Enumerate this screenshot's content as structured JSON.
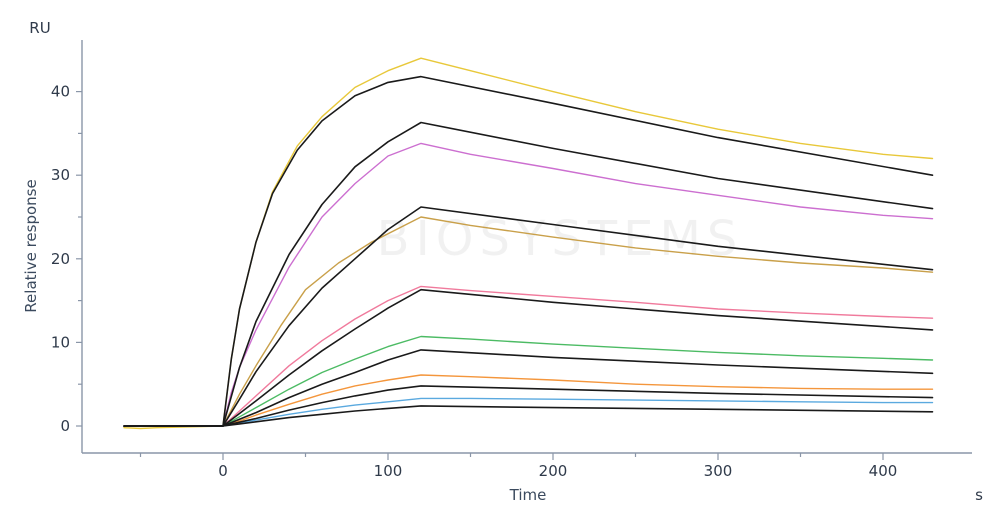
{
  "chart_data": {
    "type": "line",
    "title": "",
    "xlabel": "Time",
    "ylabel": "Relative response",
    "y_unit": "RU",
    "x_unit": "s",
    "xlim": [
      -65,
      430
    ],
    "ylim": [
      -2.5,
      46
    ],
    "x_ticks": [
      0,
      100,
      200,
      300,
      400
    ],
    "y_ticks": [
      0,
      10,
      20,
      30,
      40
    ],
    "x_minor_ticks": [
      -50,
      50,
      150,
      250,
      350
    ],
    "y_minor_ticks": [
      5,
      15,
      25,
      35
    ],
    "grid": false,
    "legend": "none",
    "series": [
      {
        "color": "#e8c83a",
        "fit": false,
        "points": [
          [
            -60,
            -0.2
          ],
          [
            -50,
            -0.3
          ],
          [
            -40,
            -0.2
          ],
          [
            0,
            0
          ],
          [
            5,
            8
          ],
          [
            10,
            14
          ],
          [
            20,
            22
          ],
          [
            30,
            28
          ],
          [
            45,
            33.5
          ],
          [
            60,
            37
          ],
          [
            80,
            40.5
          ],
          [
            100,
            42.5
          ],
          [
            120,
            44
          ],
          [
            150,
            42.5
          ],
          [
            200,
            40
          ],
          [
            250,
            37.6
          ],
          [
            300,
            35.5
          ],
          [
            350,
            33.8
          ],
          [
            400,
            32.5
          ],
          [
            430,
            32
          ]
        ]
      },
      {
        "color": "#1a1a1a",
        "fit": true,
        "points": [
          [
            -60,
            0
          ],
          [
            0,
            0
          ],
          [
            5,
            8
          ],
          [
            10,
            14
          ],
          [
            20,
            22
          ],
          [
            30,
            27.8
          ],
          [
            45,
            33
          ],
          [
            60,
            36.5
          ],
          [
            80,
            39.5
          ],
          [
            100,
            41.1
          ],
          [
            120,
            41.8
          ],
          [
            200,
            38.6
          ],
          [
            300,
            34.5
          ],
          [
            430,
            30
          ]
        ]
      },
      {
        "color": "#1a1a1a",
        "fit": true,
        "points": [
          [
            -60,
            0
          ],
          [
            0,
            0
          ],
          [
            10,
            7
          ],
          [
            20,
            12.5
          ],
          [
            40,
            20.5
          ],
          [
            60,
            26.5
          ],
          [
            80,
            31
          ],
          [
            100,
            34
          ],
          [
            120,
            36.3
          ],
          [
            200,
            33.2
          ],
          [
            300,
            29.6
          ],
          [
            430,
            26
          ]
        ]
      },
      {
        "color": "#cc6fd0",
        "fit": false,
        "points": [
          [
            -60,
            0
          ],
          [
            0,
            0
          ],
          [
            5,
            4
          ],
          [
            10,
            7
          ],
          [
            20,
            11.5
          ],
          [
            40,
            19
          ],
          [
            60,
            25
          ],
          [
            80,
            29
          ],
          [
            100,
            32.3
          ],
          [
            120,
            33.8
          ],
          [
            150,
            32.5
          ],
          [
            200,
            30.8
          ],
          [
            250,
            29
          ],
          [
            300,
            27.6
          ],
          [
            350,
            26.2
          ],
          [
            400,
            25.2
          ],
          [
            430,
            24.8
          ]
        ]
      },
      {
        "color": "#1a1a1a",
        "fit": true,
        "points": [
          [
            -60,
            0
          ],
          [
            0,
            0
          ],
          [
            10,
            3.2
          ],
          [
            20,
            6.5
          ],
          [
            40,
            12
          ],
          [
            60,
            16.5
          ],
          [
            80,
            20
          ],
          [
            100,
            23.5
          ],
          [
            120,
            26.2
          ],
          [
            200,
            24.1
          ],
          [
            300,
            21.5
          ],
          [
            430,
            18.7
          ]
        ]
      },
      {
        "color": "#c9a04a",
        "fit": false,
        "points": [
          [
            -60,
            0
          ],
          [
            0,
            0
          ],
          [
            10,
            3.8
          ],
          [
            20,
            7.2
          ],
          [
            35,
            12
          ],
          [
            50,
            16.3
          ],
          [
            70,
            19.5
          ],
          [
            90,
            22
          ],
          [
            110,
            24
          ],
          [
            120,
            25
          ],
          [
            150,
            24
          ],
          [
            200,
            22.6
          ],
          [
            250,
            21.3
          ],
          [
            300,
            20.3
          ],
          [
            350,
            19.5
          ],
          [
            400,
            18.9
          ],
          [
            430,
            18.4
          ]
        ]
      },
      {
        "color": "#f07a9c",
        "fit": false,
        "points": [
          [
            -60,
            0
          ],
          [
            0,
            0
          ],
          [
            10,
            1.8
          ],
          [
            20,
            3.6
          ],
          [
            40,
            7.2
          ],
          [
            60,
            10.2
          ],
          [
            80,
            12.8
          ],
          [
            100,
            15
          ],
          [
            120,
            16.7
          ],
          [
            150,
            16.2
          ],
          [
            200,
            15.5
          ],
          [
            250,
            14.8
          ],
          [
            300,
            14
          ],
          [
            350,
            13.5
          ],
          [
            400,
            13.1
          ],
          [
            430,
            12.9
          ]
        ]
      },
      {
        "color": "#1a1a1a",
        "fit": true,
        "points": [
          [
            -60,
            0
          ],
          [
            0,
            0
          ],
          [
            10,
            1.5
          ],
          [
            20,
            3
          ],
          [
            40,
            6.1
          ],
          [
            60,
            9
          ],
          [
            80,
            11.6
          ],
          [
            100,
            14.1
          ],
          [
            120,
            16.3
          ],
          [
            200,
            14.8
          ],
          [
            300,
            13.2
          ],
          [
            430,
            11.5
          ]
        ]
      },
      {
        "color": "#4cbb64",
        "fit": false,
        "points": [
          [
            -60,
            0
          ],
          [
            0,
            0
          ],
          [
            10,
            1.1
          ],
          [
            20,
            2.2
          ],
          [
            40,
            4.4
          ],
          [
            60,
            6.4
          ],
          [
            80,
            8
          ],
          [
            100,
            9.5
          ],
          [
            120,
            10.7
          ],
          [
            150,
            10.4
          ],
          [
            200,
            9.8
          ],
          [
            250,
            9.3
          ],
          [
            300,
            8.8
          ],
          [
            350,
            8.4
          ],
          [
            400,
            8.1
          ],
          [
            430,
            7.9
          ]
        ]
      },
      {
        "color": "#1a1a1a",
        "fit": true,
        "points": [
          [
            -60,
            0
          ],
          [
            0,
            0
          ],
          [
            10,
            0.8
          ],
          [
            20,
            1.6
          ],
          [
            40,
            3.4
          ],
          [
            60,
            5
          ],
          [
            80,
            6.4
          ],
          [
            100,
            7.9
          ],
          [
            120,
            9.1
          ],
          [
            200,
            8.2
          ],
          [
            300,
            7.3
          ],
          [
            430,
            6.3
          ]
        ]
      },
      {
        "color": "#f4963c",
        "fit": false,
        "points": [
          [
            -60,
            0
          ],
          [
            0,
            0
          ],
          [
            10,
            0.6
          ],
          [
            20,
            1.3
          ],
          [
            40,
            2.6
          ],
          [
            60,
            3.8
          ],
          [
            80,
            4.8
          ],
          [
            100,
            5.5
          ],
          [
            120,
            6.1
          ],
          [
            150,
            5.9
          ],
          [
            200,
            5.5
          ],
          [
            250,
            5
          ],
          [
            300,
            4.7
          ],
          [
            350,
            4.5
          ],
          [
            400,
            4.4
          ],
          [
            430,
            4.4
          ]
        ]
      },
      {
        "color": "#1a1a1a",
        "fit": true,
        "points": [
          [
            -60,
            0
          ],
          [
            0,
            0
          ],
          [
            10,
            0.45
          ],
          [
            20,
            0.9
          ],
          [
            40,
            1.9
          ],
          [
            60,
            2.8
          ],
          [
            80,
            3.6
          ],
          [
            100,
            4.3
          ],
          [
            120,
            4.8
          ],
          [
            200,
            4.4
          ],
          [
            300,
            3.9
          ],
          [
            430,
            3.4
          ]
        ]
      },
      {
        "color": "#5aa9df",
        "fit": false,
        "points": [
          [
            -60,
            0
          ],
          [
            0,
            0
          ],
          [
            10,
            0.35
          ],
          [
            20,
            0.7
          ],
          [
            40,
            1.4
          ],
          [
            60,
            2
          ],
          [
            80,
            2.5
          ],
          [
            100,
            2.9
          ],
          [
            120,
            3.3
          ],
          [
            150,
            3.3
          ],
          [
            200,
            3.2
          ],
          [
            250,
            3.1
          ],
          [
            300,
            3
          ],
          [
            350,
            2.9
          ],
          [
            400,
            2.8
          ],
          [
            430,
            2.8
          ]
        ]
      },
      {
        "color": "#1a1a1a",
        "fit": true,
        "points": [
          [
            -60,
            0
          ],
          [
            0,
            0
          ],
          [
            10,
            0.25
          ],
          [
            20,
            0.5
          ],
          [
            40,
            1
          ],
          [
            60,
            1.4
          ],
          [
            80,
            1.8
          ],
          [
            100,
            2.1
          ],
          [
            120,
            2.4
          ],
          [
            200,
            2.2
          ],
          [
            300,
            2
          ],
          [
            430,
            1.7
          ]
        ]
      }
    ]
  }
}
